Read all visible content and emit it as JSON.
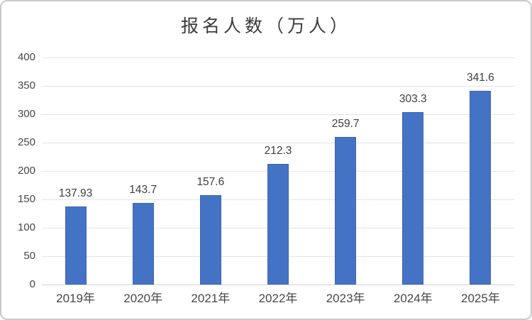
{
  "chart_data": {
    "type": "bar",
    "title": "报名人数（万人）",
    "categories": [
      "2019年",
      "2020年",
      "2021年",
      "2022年",
      "2023年",
      "2024年",
      "2025年"
    ],
    "values": [
      137.93,
      143.7,
      157.6,
      212.3,
      259.7,
      303.3,
      341.6
    ],
    "value_labels": [
      "137.93",
      "143.7",
      "157.6",
      "212.3",
      "259.7",
      "303.3",
      "341.6"
    ],
    "y_ticks": [
      0,
      50,
      100,
      150,
      200,
      250,
      300,
      350,
      400
    ],
    "ylim": [
      0,
      400
    ],
    "xlabel": "",
    "ylabel": "",
    "grid": true,
    "legend_position": "none",
    "colors": {
      "bar_fill": "#4473c6",
      "bar_border": "#3c65ad",
      "gridline": "#e4e4e4",
      "axis_line": "#d2d2d2",
      "tick_text": "#474747",
      "value_text": "#3d3d3d",
      "title_text": "#3a3a3a",
      "frame_border": "#c9c9c9",
      "background": "#ffffff"
    }
  }
}
